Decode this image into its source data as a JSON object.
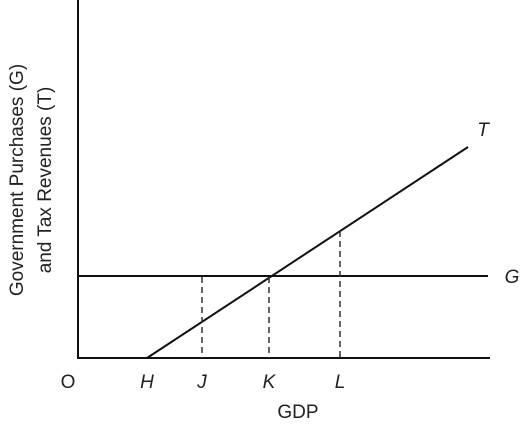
{
  "y_axis_label": [
    "Government Purchases (G)",
    "and Tax Revenues (T)"
  ],
  "x_axis_label": "GDP",
  "origin": "O",
  "x_points": [
    "H",
    "J",
    "K",
    "L"
  ],
  "lines": [
    {
      "label": "T"
    },
    {
      "label": "G"
    }
  ]
}
